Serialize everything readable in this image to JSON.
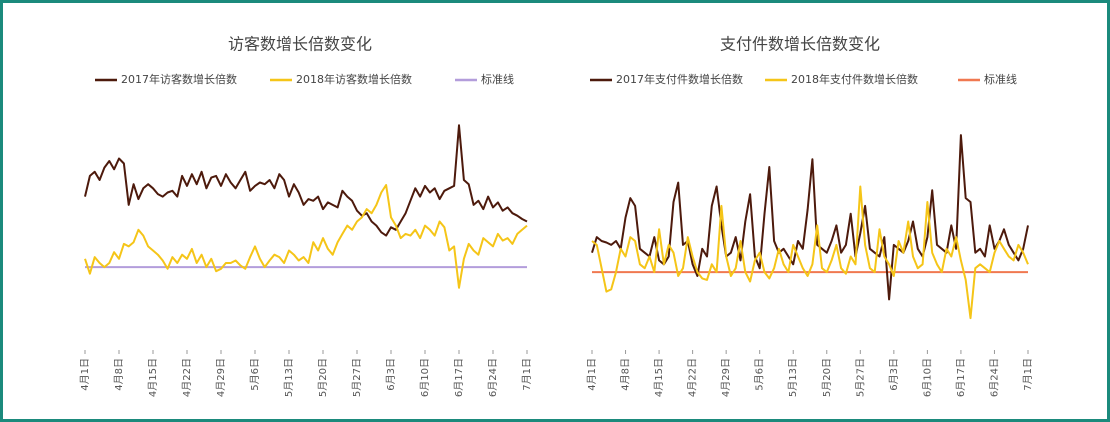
{
  "chart_data": [
    {
      "type": "line",
      "title": "访客数增长倍数变化",
      "categories": [
        "4月1日",
        null,
        null,
        null,
        null,
        null,
        null,
        "4月8日",
        null,
        null,
        null,
        null,
        null,
        null,
        "4月15日",
        null,
        null,
        null,
        null,
        null,
        null,
        "4月22日",
        null,
        null,
        null,
        null,
        null,
        null,
        "4月29日",
        null,
        null,
        null,
        null,
        null,
        null,
        "5月6日",
        null,
        null,
        null,
        null,
        null,
        null,
        "5月13日",
        null,
        null,
        null,
        null,
        null,
        null,
        "5月20日",
        null,
        null,
        null,
        null,
        null,
        null,
        "5月27日",
        null,
        null,
        null,
        null,
        null,
        null,
        "6月3日",
        null,
        null,
        null,
        null,
        null,
        null,
        "6月10日",
        null,
        null,
        null,
        null,
        null,
        null,
        "6月17日",
        null,
        null,
        null,
        null,
        null,
        null,
        "6月24日",
        null,
        null,
        null,
        null,
        null,
        null,
        "7月1日"
      ],
      "series": [
        {
          "name": "2017年访客数增长倍数",
          "color": "#4d1a0c",
          "values": [
            1.85,
            2.1,
            2.15,
            2.05,
            2.2,
            2.28,
            2.18,
            2.31,
            2.25,
            1.75,
            2.0,
            1.82,
            1.95,
            2.0,
            1.95,
            1.88,
            1.85,
            1.9,
            1.92,
            1.85,
            2.1,
            1.98,
            2.12,
            2.0,
            2.15,
            1.95,
            2.08,
            2.1,
            1.98,
            2.12,
            2.02,
            1.95,
            2.05,
            2.15,
            1.92,
            1.98,
            2.02,
            2.0,
            2.05,
            1.95,
            2.12,
            2.05,
            1.85,
            2.0,
            1.9,
            1.75,
            1.82,
            1.8,
            1.85,
            1.7,
            1.78,
            1.75,
            1.72,
            1.92,
            1.85,
            1.8,
            1.68,
            1.62,
            1.65,
            1.55,
            1.5,
            1.42,
            1.38,
            1.48,
            1.45,
            1.55,
            1.65,
            1.8,
            1.95,
            1.85,
            1.98,
            1.9,
            1.95,
            1.82,
            1.92,
            1.95,
            1.98,
            2.71,
            2.05,
            2.0,
            1.75,
            1.8,
            1.7,
            1.85,
            1.72,
            1.78,
            1.68,
            1.72,
            1.65,
            1.62,
            1.58,
            1.55
          ]
        },
        {
          "name": "2018年访客数增长倍数",
          "color": "#f5c518",
          "values": [
            1.1,
            0.92,
            1.12,
            1.05,
            1.0,
            1.05,
            1.18,
            1.1,
            1.28,
            1.25,
            1.3,
            1.45,
            1.38,
            1.25,
            1.2,
            1.15,
            1.08,
            0.98,
            1.12,
            1.05,
            1.15,
            1.1,
            1.22,
            1.05,
            1.15,
            1.0,
            1.1,
            0.95,
            0.98,
            1.05,
            1.05,
            1.08,
            1.02,
            0.98,
            1.12,
            1.25,
            1.1,
            1.0,
            1.08,
            1.15,
            1.12,
            1.05,
            1.2,
            1.15,
            1.08,
            1.12,
            1.05,
            1.3,
            1.2,
            1.35,
            1.22,
            1.15,
            1.3,
            1.4,
            1.5,
            1.45,
            1.55,
            1.6,
            1.7,
            1.65,
            1.75,
            1.9,
            1.99,
            1.6,
            1.5,
            1.35,
            1.4,
            1.38,
            1.45,
            1.35,
            1.5,
            1.45,
            1.38,
            1.55,
            1.48,
            1.2,
            1.25,
            0.75,
            1.1,
            1.28,
            1.2,
            1.15,
            1.35,
            1.3,
            1.25,
            1.4,
            1.32,
            1.35,
            1.28,
            1.4,
            1.45,
            1.5
          ]
        }
      ],
      "reference_line": {
        "name": "标准线",
        "value": 1,
        "color": "#b39ddb"
      },
      "ylim": [
        0,
        3.1
      ]
    },
    {
      "type": "line",
      "title": "支付件数增长倍数变化",
      "categories": [
        "4月1日",
        null,
        null,
        null,
        null,
        null,
        null,
        "4月8日",
        null,
        null,
        null,
        null,
        null,
        null,
        "4月15日",
        null,
        null,
        null,
        null,
        null,
        null,
        "4月22日",
        null,
        null,
        null,
        null,
        null,
        null,
        "4月29日",
        null,
        null,
        null,
        null,
        null,
        null,
        "5月6日",
        null,
        null,
        null,
        null,
        null,
        null,
        "5月13日",
        null,
        null,
        null,
        null,
        null,
        null,
        "5月20日",
        null,
        null,
        null,
        null,
        null,
        null,
        "5月27日",
        null,
        null,
        null,
        null,
        null,
        null,
        "6月3日",
        null,
        null,
        null,
        null,
        null,
        null,
        "6月10日",
        null,
        null,
        null,
        null,
        null,
        null,
        "6月17日",
        null,
        null,
        null,
        null,
        null,
        null,
        "6月24日",
        null,
        null,
        null,
        null,
        null,
        null,
        "7月1日"
      ],
      "series": [
        {
          "name": "2017年支付件数增长倍数",
          "color": "#4d1a0c",
          "values": [
            1.25,
            1.45,
            1.4,
            1.38,
            1.35,
            1.4,
            1.3,
            1.7,
            1.95,
            1.85,
            1.3,
            1.25,
            1.2,
            1.45,
            1.15,
            1.1,
            1.2,
            1.9,
            2.15,
            1.35,
            1.4,
            1.1,
            0.95,
            1.3,
            1.2,
            1.85,
            2.1,
            1.6,
            1.2,
            1.25,
            1.45,
            1.15,
            1.65,
            2.0,
            1.2,
            1.05,
            1.75,
            2.35,
            1.4,
            1.25,
            1.3,
            1.2,
            1.1,
            1.4,
            1.3,
            1.8,
            2.45,
            1.35,
            1.3,
            1.25,
            1.4,
            1.6,
            1.25,
            1.35,
            1.75,
            1.2,
            1.5,
            1.85,
            1.3,
            1.25,
            1.2,
            1.45,
            0.65,
            1.35,
            1.3,
            1.25,
            1.4,
            1.65,
            1.3,
            1.2,
            1.45,
            2.05,
            1.35,
            1.3,
            1.25,
            1.6,
            1.3,
            2.76,
            1.95,
            1.9,
            1.25,
            1.3,
            1.2,
            1.6,
            1.3,
            1.4,
            1.55,
            1.35,
            1.25,
            1.15,
            1.3,
            1.6
          ]
        },
        {
          "name": "2018年支付件数增长倍数",
          "color": "#f5c518",
          "values": [
            1.4,
            1.35,
            1.05,
            0.75,
            0.78,
            1.0,
            1.3,
            1.2,
            1.45,
            1.4,
            1.1,
            1.05,
            1.2,
            1.0,
            1.55,
            1.1,
            1.35,
            1.25,
            0.95,
            1.05,
            1.45,
            1.2,
            1.0,
            0.92,
            0.9,
            1.1,
            1.0,
            1.85,
            1.2,
            0.95,
            1.05,
            1.4,
            1.0,
            0.88,
            1.15,
            1.25,
            1.0,
            0.92,
            1.05,
            1.3,
            1.1,
            1.0,
            1.35,
            1.2,
            1.05,
            0.95,
            1.1,
            1.6,
            1.05,
            1.0,
            1.15,
            1.35,
            1.05,
            0.98,
            1.2,
            1.1,
            2.1,
            1.35,
            1.05,
            1.0,
            1.55,
            1.2,
            1.1,
            0.95,
            1.4,
            1.25,
            1.65,
            1.2,
            1.05,
            1.1,
            1.9,
            1.25,
            1.1,
            1.0,
            1.3,
            1.2,
            1.45,
            1.15,
            0.9,
            0.41,
            1.05,
            1.1,
            1.05,
            1.0,
            1.25,
            1.4,
            1.3,
            1.2,
            1.15,
            1.35,
            1.25,
            1.1
          ]
        }
      ],
      "reference_line": {
        "name": "标准线",
        "value": 1,
        "color": "#f07850"
      },
      "ylim": [
        0,
        3.3
      ]
    }
  ]
}
